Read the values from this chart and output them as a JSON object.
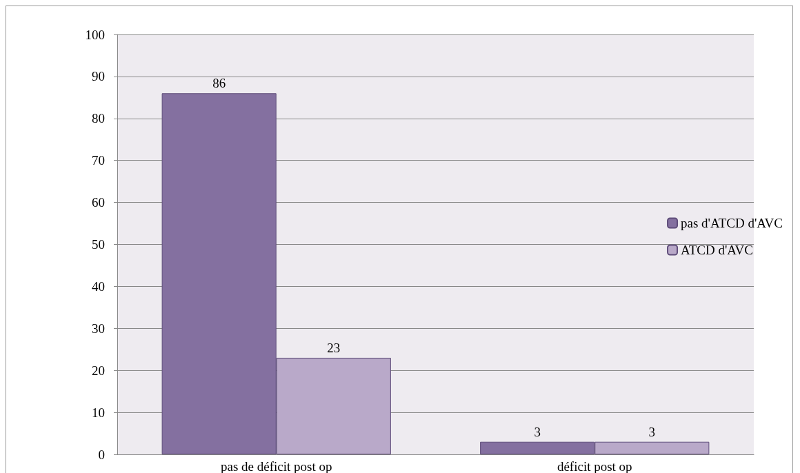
{
  "chart_data": {
    "type": "bar",
    "categories": [
      "pas de déficit post op",
      "déficit post op"
    ],
    "series": [
      {
        "name": "pas d'ATCD d'AVC",
        "color": "#8470a0",
        "values": [
          86,
          3
        ]
      },
      {
        "name": "ATCD d'AVC",
        "color": "#b9a9c9",
        "values": [
          23,
          3
        ]
      }
    ],
    "ylim": [
      0,
      100
    ],
    "yticks": [
      0,
      10,
      20,
      30,
      40,
      50,
      60,
      70,
      80,
      90,
      100
    ],
    "grid": "y",
    "legend": "right",
    "data_labels": true
  }
}
